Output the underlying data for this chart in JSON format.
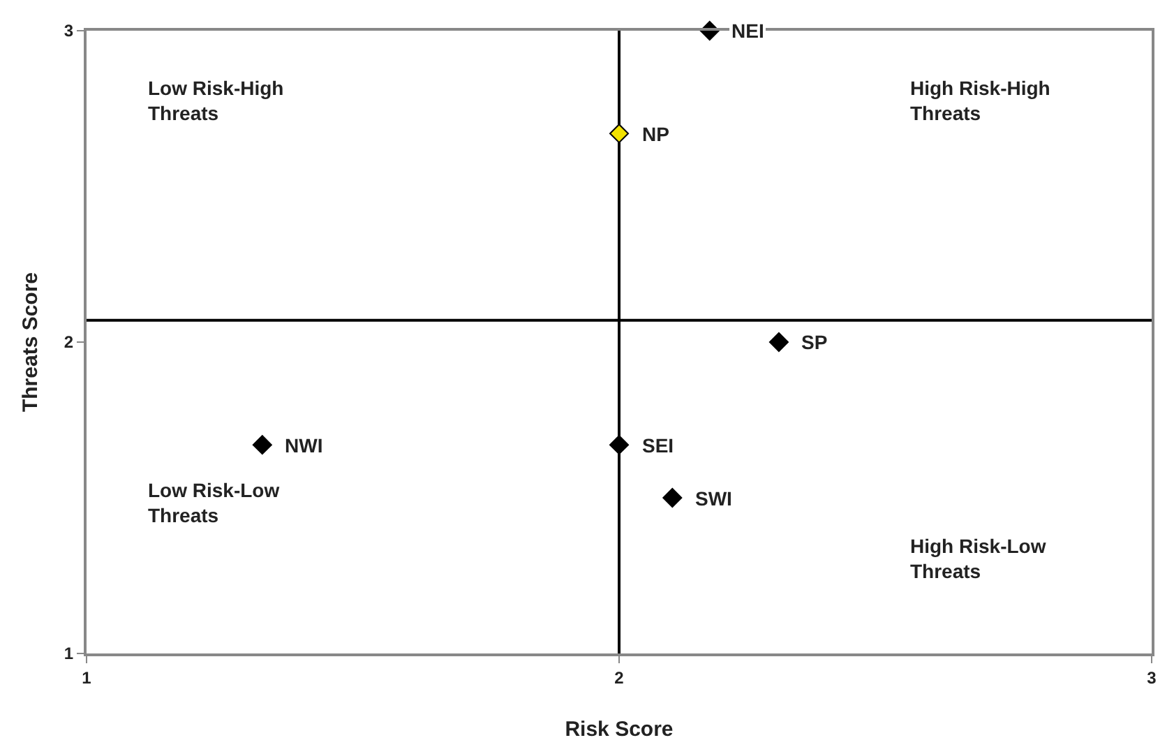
{
  "chart_data": {
    "type": "scatter",
    "xlabel": "Risk Score",
    "ylabel": "Threats Score",
    "xlim": [
      1,
      3
    ],
    "xticks": [
      1,
      2,
      3
    ],
    "ylim": [
      1,
      3
    ],
    "yticks": [
      1,
      2,
      3
    ],
    "grid": false,
    "legend": false,
    "marker": "diamond",
    "series": [
      {
        "name": "NEI",
        "color": "#000000",
        "x": [
          2.17
        ],
        "values": [
          3.0
        ]
      },
      {
        "name": "NP",
        "color": "#f2e200",
        "x": [
          2.0
        ],
        "values": [
          2.67
        ]
      },
      {
        "name": "SP",
        "color": "#000000",
        "x": [
          2.3
        ],
        "values": [
          2.0
        ]
      },
      {
        "name": "NWI",
        "color": "#000000",
        "x": [
          1.33
        ],
        "values": [
          1.67
        ]
      },
      {
        "name": "SEI",
        "color": "#000000",
        "x": [
          2.0
        ],
        "values": [
          1.67
        ]
      },
      {
        "name": "SWI",
        "color": "#000000",
        "x": [
          2.1
        ],
        "values": [
          1.5
        ]
      }
    ],
    "ref_lines": [
      {
        "axis": "y",
        "value": 2.07,
        "color": "#000000"
      },
      {
        "axis": "x",
        "value": 2.0,
        "color": "#000000"
      }
    ],
    "annotations": [
      "Low Risk-High Threats",
      "High Risk-High Threats",
      "Low Risk-Low Threats",
      "High Risk-Low Threats"
    ]
  }
}
